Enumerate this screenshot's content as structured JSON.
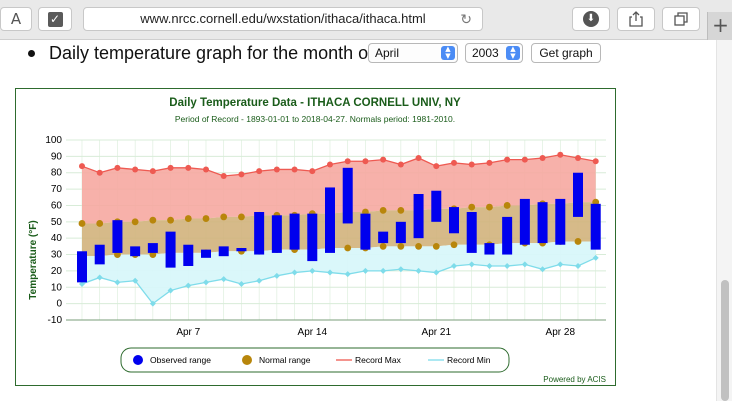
{
  "browser": {
    "reader_label": "A",
    "url": "www.nrcc.cornell.edu/wxstation/ithaca/ithaca.html",
    "new_tab_label": "+"
  },
  "form": {
    "label": "Daily temperature graph for the month of:",
    "month": "April",
    "year": "2003",
    "button_label": "Get graph"
  },
  "chart_data": {
    "type": "bar",
    "title": "Daily Temperature Data - ITHACA CORNELL UNIV, NY",
    "subtitle": "Period of Record - 1893-01-01 to 2018-04-27. Normals period: 1981-2010.",
    "ylabel": "Temperature (°F)",
    "ylim": [
      -10,
      100
    ],
    "yticks": [
      -10,
      0,
      10,
      20,
      30,
      40,
      50,
      60,
      70,
      80,
      90,
      100
    ],
    "xticks": [
      {
        "day": 7,
        "label": "Apr 7"
      },
      {
        "day": 14,
        "label": "Apr 14"
      },
      {
        "day": 21,
        "label": "Apr 21"
      },
      {
        "day": 28,
        "label": "Apr 28"
      }
    ],
    "days": [
      1,
      2,
      3,
      4,
      5,
      6,
      7,
      8,
      9,
      10,
      11,
      12,
      13,
      14,
      15,
      16,
      17,
      18,
      19,
      20,
      21,
      22,
      23,
      24,
      25,
      26,
      27,
      28,
      29,
      30
    ],
    "observed_low": [
      13,
      24,
      31,
      29,
      31,
      22,
      23,
      28,
      29,
      32,
      30,
      31,
      33,
      26,
      31,
      49,
      33,
      37,
      37,
      40,
      50,
      43,
      31,
      30,
      30,
      36,
      37,
      36,
      53,
      33
    ],
    "observed_high": [
      32,
      36,
      51,
      35,
      37,
      44,
      36,
      33,
      35,
      34,
      56,
      54,
      55,
      55,
      71,
      83,
      55,
      44,
      50,
      67,
      69,
      59,
      56,
      37,
      53,
      64,
      62,
      64,
      80,
      61
    ],
    "normal_low": [
      29,
      29,
      30,
      30,
      30,
      31,
      31,
      31,
      32,
      32,
      32,
      33,
      33,
      33,
      34,
      34,
      34,
      35,
      35,
      35,
      35,
      36,
      36,
      36,
      37,
      37,
      37,
      38,
      38,
      38
    ],
    "normal_high": [
      49,
      49,
      50,
      50,
      51,
      51,
      52,
      52,
      53,
      53,
      54,
      54,
      54,
      55,
      55,
      56,
      56,
      57,
      57,
      57,
      58,
      58,
      59,
      59,
      60,
      60,
      61,
      61,
      62,
      62
    ],
    "record_max": [
      84,
      80,
      83,
      82,
      81,
      83,
      83,
      82,
      78,
      79,
      81,
      82,
      82,
      81,
      85,
      87,
      87,
      88,
      85,
      89,
      84,
      86,
      85,
      86,
      88,
      88,
      89,
      91,
      89,
      87
    ],
    "record_min": [
      12,
      16,
      13,
      14,
      0,
      8,
      11,
      13,
      15,
      12,
      14,
      17,
      19,
      20,
      19,
      18,
      20,
      20,
      21,
      20,
      19,
      23,
      24,
      23,
      23,
      24,
      21,
      24,
      23,
      28
    ],
    "legend": [
      "Observed range",
      "Normal range",
      "Record Max",
      "Record Min"
    ],
    "legend_position": "bottom",
    "credit": "Powered by ACIS",
    "colors": {
      "observed": "#0000ee",
      "normal_fill": "#d2b27c",
      "normal_marker": "#b8860b",
      "record_max_fill": "#f6a9a1",
      "record_max_line": "#ee5a52",
      "record_min_fill": "#d8f7fa",
      "record_min_line": "#7fdcea",
      "title": "#1a5c1a",
      "grid": "#d8ecd8"
    }
  }
}
